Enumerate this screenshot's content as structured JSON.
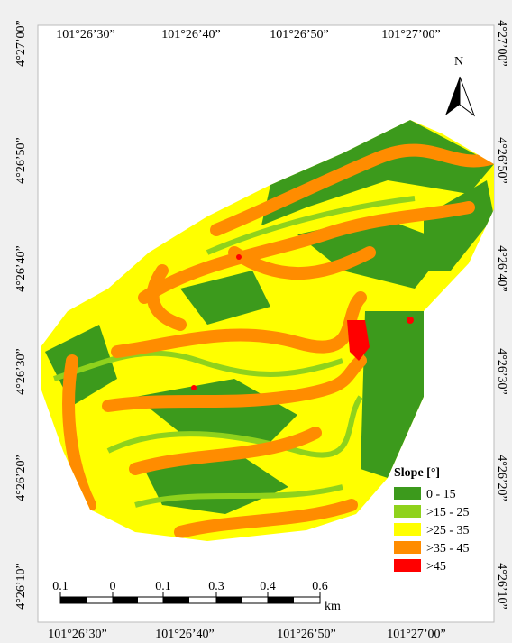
{
  "map": {
    "top_labels": [
      "101°26’30”",
      "101°26’40”",
      "101°26’50”",
      "101°27’00”"
    ],
    "bottom_labels": [
      "101°26’30”",
      "101°26’40”",
      "101°26’50”",
      "101°27’00”"
    ],
    "left_labels": [
      "4°27’00”",
      "4°26’50”",
      "4°26’40”",
      "4°26’30”",
      "4°26’20”",
      "4°26’10”"
    ],
    "right_labels": [
      "4°27’00”",
      "4°26’50”",
      "4°26’40”",
      "4°26’30”",
      "4°26’20”",
      "4°26’10”"
    ],
    "north": "N"
  },
  "legend": {
    "title": "Slope [°]",
    "items": [
      {
        "label": "0 - 15",
        "color": "#3c9a1c"
      },
      {
        "label": ">15 - 25",
        "color": "#8fd21c"
      },
      {
        "label": ">25 - 35",
        "color": "#ffff00"
      },
      {
        "label": ">35 - 45",
        "color": "#ff8c00"
      },
      {
        "label": ">45",
        "color": "#ff0000"
      }
    ]
  },
  "scale_bar": {
    "labels": [
      "0.1",
      "0",
      "0.1",
      "0.3",
      "0.4",
      "0.6"
    ],
    "unit": "km"
  }
}
